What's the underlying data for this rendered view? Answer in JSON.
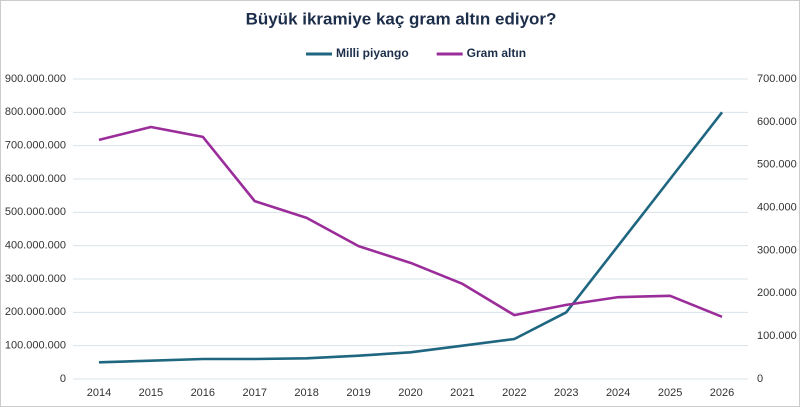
{
  "chart_data": {
    "type": "line",
    "title": "Büyük ikramiye kaç gram altın ediyor?",
    "categories": [
      "2014",
      "2015",
      "2016",
      "2017",
      "2018",
      "2019",
      "2020",
      "2021",
      "2022",
      "2023",
      "2024",
      "2025",
      "2026"
    ],
    "series": [
      {
        "name": "Milli piyango",
        "color": "#1f6680",
        "values": [
          50000000,
          55000000,
          60000000,
          60000000,
          62000000,
          70000000,
          80000000,
          100000000,
          120000000,
          200000000,
          400000000,
          600000000,
          800000000
        ]
      },
      {
        "name": "Gram altın",
        "color": "#9b2d9b",
        "axis": "y2",
        "values": [
          558000,
          588000,
          565000,
          415000,
          376000,
          310000,
          271000,
          222000,
          149000,
          173000,
          191000,
          194000,
          145000
        ]
      }
    ],
    "ylim": [
      0,
      900000000
    ],
    "yticks": [
      0,
      {
        "value": 100000000,
        "label": "100.000.000"
      },
      {
        "value": 200000000,
        "label": "200.000.000"
      },
      {
        "value": 300000000,
        "label": "300.000.000"
      },
      {
        "value": 400000000,
        "label": "400.000.000"
      },
      {
        "value": 500000000,
        "label": "500.000.000"
      },
      {
        "value": 600000000,
        "label": "600.000.000"
      },
      {
        "value": 700000000,
        "label": "700.000.000"
      },
      {
        "value": 800000000,
        "label": "800.000.000"
      },
      {
        "value": 900000000,
        "label": "900.000.000"
      }
    ],
    "y2lim": [
      0,
      700000
    ],
    "y2ticks": [
      0,
      {
        "value": 100000,
        "label": "100.000"
      },
      {
        "value": 200000,
        "label": "200.000"
      },
      {
        "value": 300000,
        "label": "300.000"
      },
      {
        "value": 400000,
        "label": "400.000"
      },
      {
        "value": 500000,
        "label": "500.000"
      },
      {
        "value": 600000,
        "label": "600.000"
      },
      {
        "value": 700000,
        "label": "700.000"
      }
    ],
    "grid": true
  }
}
